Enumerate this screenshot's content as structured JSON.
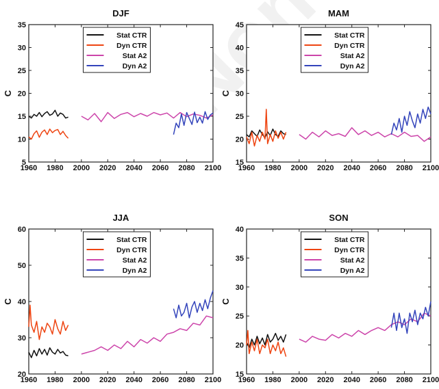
{
  "watermark": "Non-c",
  "colors": {
    "stat_ctr": "#111111",
    "dyn_ctr": "#ee4411",
    "stat_a2": "#cc44aa",
    "dyn_a2": "#3344bb"
  },
  "legend_entries": [
    "Stat CTR",
    "Dyn CTR",
    "Stat A2",
    "Dyn A2"
  ],
  "chart_data": [
    {
      "type": "line",
      "title": "DJF",
      "ylabel": "C",
      "xlim": [
        1960,
        2100
      ],
      "ylim": [
        5,
        35
      ],
      "xticks": [
        1960,
        1980,
        2000,
        2020,
        2040,
        2060,
        2080,
        2100
      ],
      "yticks": [
        5,
        10,
        15,
        20,
        25,
        30,
        35
      ],
      "legend": "top-center",
      "series": [
        {
          "name": "Stat CTR",
          "x": [
            1960,
            1962,
            1964,
            1966,
            1968,
            1970,
            1972,
            1974,
            1976,
            1978,
            1980,
            1982,
            1984,
            1986,
            1988,
            1990
          ],
          "y": [
            15.0,
            14.6,
            15.4,
            15.0,
            15.8,
            14.9,
            15.6,
            16.0,
            15.2,
            15.5,
            16.3,
            15.0,
            15.7,
            15.4,
            14.6,
            14.8
          ]
        },
        {
          "name": "Dyn CTR",
          "x": [
            1960,
            1962,
            1964,
            1966,
            1968,
            1970,
            1972,
            1974,
            1976,
            1978,
            1980,
            1982,
            1984,
            1986,
            1988,
            1990
          ],
          "y": [
            10.5,
            10.0,
            11.2,
            11.8,
            10.4,
            11.5,
            12.0,
            11.0,
            12.2,
            11.4,
            11.9,
            12.1,
            11.0,
            11.7,
            10.8,
            10.2
          ]
        },
        {
          "name": "Stat A2",
          "x": [
            2000,
            2005,
            2010,
            2015,
            2020,
            2025,
            2030,
            2035,
            2040,
            2045,
            2050,
            2055,
            2060,
            2065,
            2070,
            2075,
            2080,
            2085,
            2090,
            2095,
            2100
          ],
          "y": [
            15.0,
            14.2,
            15.6,
            13.8,
            15.8,
            14.5,
            15.4,
            15.8,
            14.9,
            15.6,
            15.0,
            15.8,
            15.3,
            15.7,
            14.6,
            15.8,
            14.9,
            15.5,
            15.2,
            14.6,
            15.3
          ]
        },
        {
          "name": "Dyn A2",
          "x": [
            2070,
            2072,
            2074,
            2076,
            2078,
            2080,
            2082,
            2084,
            2086,
            2088,
            2090,
            2092,
            2094,
            2096,
            2098,
            2100
          ],
          "y": [
            11.0,
            13.5,
            12.5,
            15.5,
            13.0,
            15.8,
            14.5,
            13.2,
            15.9,
            13.6,
            14.8,
            13.5,
            16.0,
            14.3,
            15.3,
            15.7
          ]
        }
      ]
    },
    {
      "type": "line",
      "title": "MAM",
      "ylabel": "C",
      "xlim": [
        1960,
        2100
      ],
      "ylim": [
        15,
        45
      ],
      "xticks": [
        1960,
        1980,
        2000,
        2020,
        2040,
        2060,
        2080,
        2100
      ],
      "yticks": [
        15,
        20,
        25,
        30,
        35,
        40,
        45
      ],
      "legend": "top-center",
      "series": [
        {
          "name": "Stat CTR",
          "x": [
            1960,
            1962,
            1964,
            1966,
            1968,
            1970,
            1972,
            1974,
            1976,
            1978,
            1980,
            1982,
            1984,
            1986,
            1988,
            1990
          ],
          "y": [
            21.0,
            20.5,
            21.8,
            21.2,
            20.6,
            22.0,
            21.0,
            20.3,
            21.6,
            20.8,
            22.2,
            21.0,
            20.6,
            21.8,
            21.2,
            21.0
          ]
        },
        {
          "name": "Dyn CTR",
          "x": [
            1960,
            1962,
            1964,
            1966,
            1968,
            1970,
            1972,
            1974,
            1975,
            1976,
            1978,
            1980,
            1982,
            1984,
            1986,
            1988,
            1990
          ],
          "y": [
            20.5,
            19.0,
            21.5,
            18.5,
            20.8,
            19.5,
            21.5,
            20.0,
            26.5,
            19.0,
            21.0,
            19.5,
            21.8,
            20.2,
            21.5,
            20.0,
            21.5
          ]
        },
        {
          "name": "Stat A2",
          "x": [
            2000,
            2005,
            2010,
            2015,
            2020,
            2025,
            2030,
            2035,
            2040,
            2045,
            2050,
            2055,
            2060,
            2065,
            2070,
            2075,
            2080,
            2085,
            2090,
            2095,
            2100
          ],
          "y": [
            21.0,
            20.0,
            21.5,
            20.5,
            21.8,
            20.8,
            21.2,
            20.6,
            22.5,
            21.0,
            21.8,
            20.8,
            21.5,
            20.5,
            21.2,
            20.5,
            21.5,
            20.6,
            20.8,
            19.5,
            20.5
          ]
        },
        {
          "name": "Dyn A2",
          "x": [
            2070,
            2072,
            2074,
            2076,
            2078,
            2080,
            2082,
            2084,
            2086,
            2088,
            2090,
            2092,
            2094,
            2096,
            2098,
            2100
          ],
          "y": [
            21.0,
            23.5,
            22.0,
            24.5,
            21.5,
            25.0,
            23.0,
            26.0,
            24.0,
            22.5,
            25.5,
            23.5,
            26.5,
            24.5,
            27.0,
            25.5
          ]
        }
      ]
    },
    {
      "type": "line",
      "title": "JJA",
      "ylabel": "C",
      "xlim": [
        1960,
        2100
      ],
      "ylim": [
        20,
        60
      ],
      "xticks": [
        1960,
        1980,
        2000,
        2020,
        2040,
        2060,
        2080,
        2100
      ],
      "yticks": [
        20,
        30,
        40,
        50,
        60
      ],
      "legend": "top-center",
      "series": [
        {
          "name": "Stat CTR",
          "x": [
            1960,
            1962,
            1964,
            1966,
            1968,
            1970,
            1972,
            1974,
            1976,
            1978,
            1980,
            1982,
            1984,
            1986,
            1988,
            1990
          ],
          "y": [
            26.0,
            24.5,
            26.5,
            25.0,
            27.0,
            25.5,
            26.8,
            25.2,
            27.2,
            26.0,
            25.5,
            26.8,
            25.8,
            26.2,
            25.2,
            25.0
          ]
        },
        {
          "name": "Dyn CTR",
          "x": [
            1960,
            1961,
            1962,
            1964,
            1966,
            1968,
            1970,
            1972,
            1974,
            1976,
            1978,
            1980,
            1982,
            1984,
            1986,
            1988,
            1990
          ],
          "y": [
            33.0,
            39.0,
            33.5,
            31.5,
            34.5,
            29.5,
            33.0,
            31.5,
            34.0,
            33.0,
            31.0,
            35.0,
            32.5,
            31.0,
            34.5,
            32.0,
            33.5
          ]
        },
        {
          "name": "Stat A2",
          "x": [
            2000,
            2005,
            2010,
            2015,
            2020,
            2025,
            2030,
            2035,
            2040,
            2045,
            2050,
            2055,
            2060,
            2065,
            2070,
            2075,
            2080,
            2085,
            2090,
            2095,
            2100
          ],
          "y": [
            25.5,
            26.0,
            26.5,
            27.5,
            26.5,
            28.0,
            27.0,
            29.0,
            27.5,
            29.5,
            28.5,
            30.0,
            29.0,
            31.0,
            31.5,
            32.5,
            32.0,
            34.0,
            33.5,
            36.0,
            35.5
          ]
        },
        {
          "name": "Dyn A2",
          "x": [
            2070,
            2072,
            2074,
            2076,
            2078,
            2080,
            2082,
            2084,
            2086,
            2088,
            2090,
            2092,
            2094,
            2096,
            2098,
            2100
          ],
          "y": [
            38.0,
            35.5,
            39.0,
            36.0,
            37.0,
            39.5,
            35.5,
            38.5,
            40.0,
            37.0,
            39.5,
            37.5,
            40.5,
            38.0,
            41.0,
            43.0
          ]
        }
      ]
    },
    {
      "type": "line",
      "title": "SON",
      "ylabel": "C",
      "xlim": [
        1960,
        2100
      ],
      "ylim": [
        15,
        40
      ],
      "xticks": [
        1960,
        1980,
        2000,
        2020,
        2040,
        2060,
        2080,
        2100
      ],
      "yticks": [
        15,
        20,
        25,
        30,
        35,
        40
      ],
      "legend": "top-center",
      "series": [
        {
          "name": "Stat CTR",
          "x": [
            1960,
            1962,
            1964,
            1966,
            1968,
            1970,
            1972,
            1974,
            1976,
            1978,
            1980,
            1982,
            1984,
            1986,
            1988,
            1990
          ],
          "y": [
            20.5,
            19.5,
            21.0,
            20.0,
            21.5,
            20.2,
            21.2,
            20.0,
            21.8,
            20.5,
            21.0,
            22.0,
            20.8,
            21.5,
            20.5,
            21.8
          ]
        },
        {
          "name": "Dyn CTR",
          "x": [
            1960,
            1961,
            1962,
            1964,
            1966,
            1968,
            1970,
            1972,
            1974,
            1976,
            1978,
            1980,
            1982,
            1984,
            1986,
            1988,
            1990
          ],
          "y": [
            20.0,
            22.5,
            18.5,
            20.5,
            19.0,
            21.0,
            18.5,
            20.0,
            19.5,
            21.0,
            18.5,
            20.0,
            19.0,
            20.5,
            18.5,
            19.5,
            18.0
          ]
        },
        {
          "name": "Stat A2",
          "x": [
            2000,
            2005,
            2010,
            2015,
            2020,
            2025,
            2030,
            2035,
            2040,
            2045,
            2050,
            2055,
            2060,
            2065,
            2070,
            2075,
            2080,
            2085,
            2090,
            2095,
            2100
          ],
          "y": [
            21.0,
            20.5,
            21.5,
            21.0,
            20.8,
            21.8,
            21.2,
            22.0,
            21.5,
            22.5,
            21.8,
            22.5,
            23.0,
            22.5,
            23.5,
            24.0,
            23.5,
            24.5,
            24.0,
            25.5,
            25.0
          ]
        },
        {
          "name": "Dyn A2",
          "x": [
            2070,
            2072,
            2074,
            2076,
            2078,
            2080,
            2082,
            2084,
            2086,
            2088,
            2090,
            2092,
            2094,
            2096,
            2098,
            2100
          ],
          "y": [
            23.0,
            25.5,
            22.5,
            25.5,
            23.0,
            24.5,
            22.0,
            25.5,
            24.0,
            26.0,
            23.5,
            25.5,
            24.5,
            26.5,
            25.0,
            27.5
          ]
        }
      ]
    }
  ]
}
